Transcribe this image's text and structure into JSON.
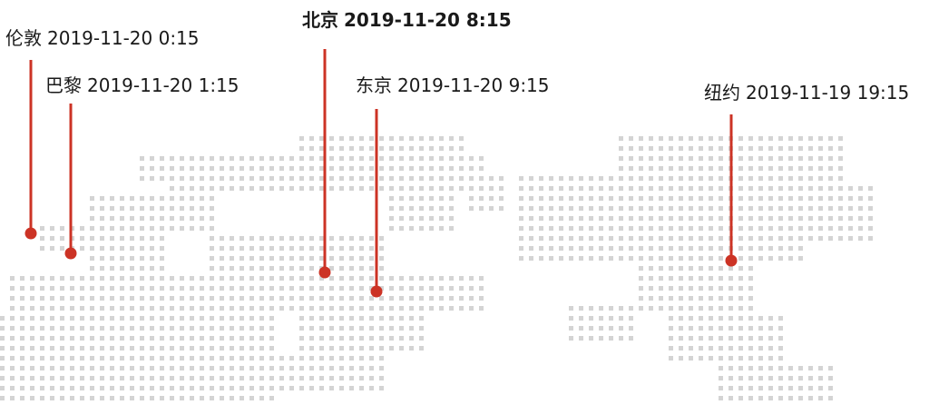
{
  "map": {
    "land_color": "#d4d4d4",
    "marker_color": "#cc3325",
    "label_color": "#1a1a1a",
    "cities": [
      {
        "name": "伦敦",
        "datetime": "2019-11-20 0:15",
        "highlight": false
      },
      {
        "name": "巴黎",
        "datetime": "2019-11-20 1:15",
        "highlight": false
      },
      {
        "name": "北京",
        "datetime": "2019-11-20 8:15",
        "highlight": true
      },
      {
        "name": "东京",
        "datetime": "2019-11-20 9:15",
        "highlight": false
      },
      {
        "name": "纽约",
        "datetime": "2019-11-19 19:15",
        "highlight": false
      }
    ]
  }
}
